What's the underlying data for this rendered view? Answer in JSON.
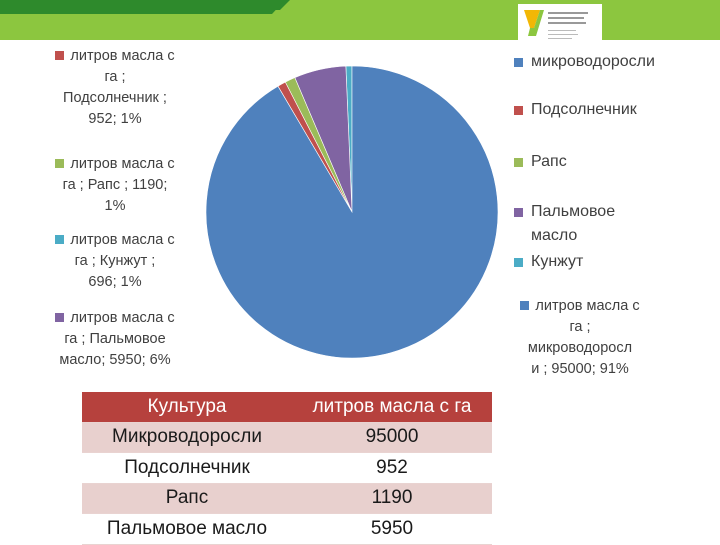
{
  "colors": {
    "header_dark_green": "#2e8a2c",
    "header_light_green": "#8cc63f",
    "table_header": "#b6413d",
    "table_row_odd": "#e8d0ce",
    "logo_yellow": "#f2b705",
    "logo_green": "#8cc63f"
  },
  "logo_text": "Уральский федеральный университет",
  "chart_data": {
    "type": "pie",
    "title": "",
    "value_label": "литров масла с га",
    "slices": [
      {
        "name": "микроводоросли",
        "value": 95000,
        "percent": 91,
        "color": "#4f81bd"
      },
      {
        "name": "Подсолнечник",
        "value": 952,
        "percent": 1,
        "color": "#c0504d"
      },
      {
        "name": "Рапс",
        "value": 1190,
        "percent": 1,
        "color": "#9bbb59"
      },
      {
        "name": "Пальмовое масло",
        "value": 5950,
        "percent": 6,
        "color": "#8064a2"
      },
      {
        "name": "Кунжут",
        "value": 696,
        "percent": 1,
        "color": "#4bacc6"
      }
    ],
    "legend": {
      "placement": "right",
      "entries": [
        "микроводоросли",
        "Подсолнечник",
        "Рапс",
        "Пальмовое масло",
        "Кунжут"
      ]
    },
    "data_labels": [
      {
        "series": "Подсолнечник",
        "lines": [
          "литров масла с",
          "га ;",
          "Подсолнечник ;",
          "952; 1%"
        ],
        "color": "#c0504d"
      },
      {
        "series": "Рапс",
        "lines": [
          "литров масла с",
          "га ; Рапс ; 1190;",
          "1%"
        ],
        "color": "#9bbb59"
      },
      {
        "series": "Кунжут",
        "lines": [
          "литров масла с",
          "га ; Кунжут ;",
          "696; 1%"
        ],
        "color": "#4bacc6"
      },
      {
        "series": "Пальмовое масло",
        "lines": [
          "литров масла с",
          "га ; Пальмовое",
          "масло; 5950; 6%"
        ],
        "color": "#8064a2"
      },
      {
        "series": "микроводоросли",
        "lines": [
          "литров масла с",
          "га ;",
          "микроводоросл",
          "и ; 95000; 91%"
        ],
        "color": "#4f81bd"
      }
    ]
  },
  "table": {
    "headers": [
      "Культура",
      "литров масла с га"
    ],
    "rows": [
      [
        "Микроводоросли",
        "95000"
      ],
      [
        "Подсолнечник",
        "952"
      ],
      [
        "Рапс",
        "1190"
      ],
      [
        "Пальмовое масло",
        "5950"
      ]
    ]
  }
}
